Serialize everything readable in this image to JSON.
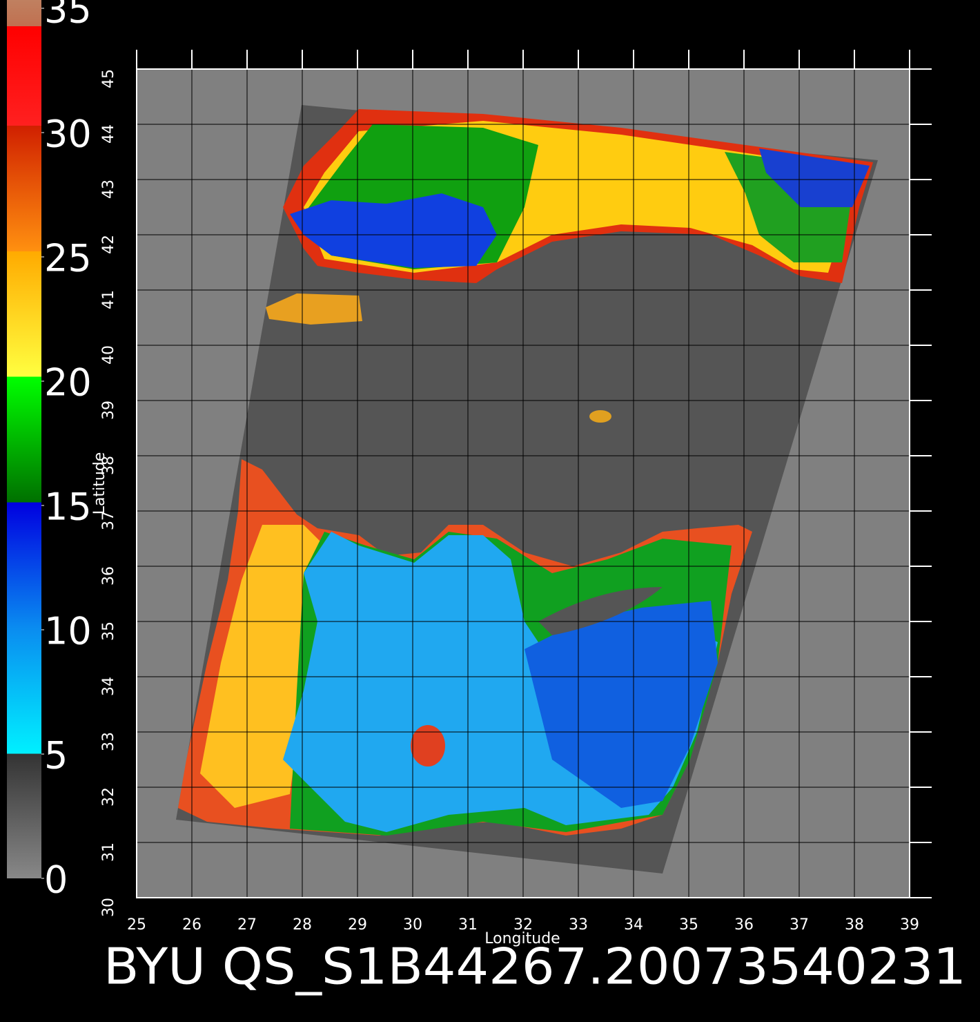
{
  "chart_data": {
    "type": "map",
    "title": "BYU QS_S1B44267.20073540231",
    "x_label": "Longitude",
    "y_label": "Latitude",
    "xlim": [
      25,
      39
    ],
    "ylim": [
      30,
      45
    ],
    "xticks": [
      25,
      26,
      27,
      28,
      29,
      30,
      31,
      32,
      33,
      34,
      35,
      36,
      37,
      38,
      39
    ],
    "yticks": [
      30,
      31,
      32,
      33,
      34,
      35,
      36,
      37,
      38,
      39,
      40,
      41,
      42,
      43,
      44,
      45
    ],
    "grid": true,
    "colorbar": {
      "lim": [
        0,
        35
      ],
      "ticks": [
        0,
        5,
        10,
        15,
        20,
        25,
        30,
        35
      ]
    }
  }
}
